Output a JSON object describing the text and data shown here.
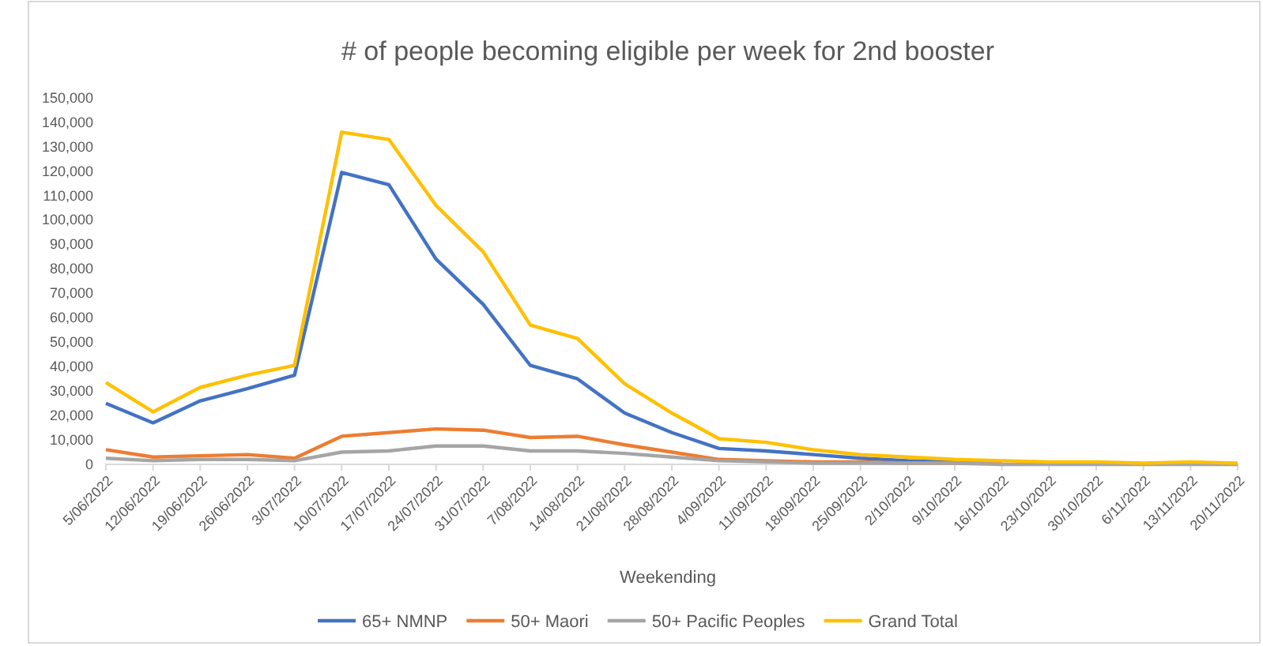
{
  "chart_data": {
    "type": "line",
    "title": "# of people becoming eligible per week for 2nd booster",
    "xlabel": "Weekending",
    "categories": [
      "5/06/2022",
      "12/06/2022",
      "19/06/2022",
      "26/06/2022",
      "3/07/2022",
      "10/07/2022",
      "17/07/2022",
      "24/07/2022",
      "31/07/2022",
      "7/08/2022",
      "14/08/2022",
      "21/08/2022",
      "28/08/2022",
      "4/09/2022",
      "11/09/2022",
      "18/09/2022",
      "25/09/2022",
      "2/10/2022",
      "9/10/2022",
      "16/10/2022",
      "23/10/2022",
      "30/10/2022",
      "6/11/2022",
      "13/11/2022",
      "20/11/2022"
    ],
    "series": [
      {
        "name": "65+ NMNP",
        "color": "#4472c4",
        "values": [
          25000,
          17000,
          26000,
          31000,
          36500,
          119500,
          114500,
          84000,
          65500,
          40500,
          35000,
          21000,
          13000,
          6500,
          5500,
          4000,
          2500,
          1500,
          1000,
          500,
          null,
          null,
          null,
          null,
          null
        ]
      },
      {
        "name": "50+ Maori",
        "color": "#ed7d31",
        "values": [
          6000,
          3000,
          3500,
          4000,
          2500,
          11500,
          13000,
          14500,
          14000,
          11000,
          11500,
          8000,
          5000,
          2000,
          1500,
          1000,
          1000,
          500,
          500,
          500,
          null,
          null,
          null,
          null,
          null
        ]
      },
      {
        "name": "50+ Pacific Peoples",
        "color": "#a5a5a5",
        "values": [
          2500,
          1500,
          2000,
          2000,
          1500,
          5000,
          5500,
          7500,
          7500,
          5500,
          5500,
          4500,
          3000,
          1500,
          1000,
          500,
          500,
          500,
          500,
          0,
          0,
          0,
          0,
          0,
          0
        ]
      },
      {
        "name": "Grand Total",
        "color": "#ffc000",
        "values": [
          33500,
          21500,
          31500,
          36500,
          40500,
          136000,
          133000,
          106000,
          87000,
          57000,
          51500,
          33000,
          21000,
          10500,
          9000,
          6000,
          4000,
          3000,
          2000,
          1500,
          1000,
          1000,
          500,
          1000,
          500
        ]
      }
    ],
    "ylim": [
      0,
      150000
    ],
    "yticks": [
      {
        "value": 0,
        "label": "0"
      },
      {
        "value": 10000,
        "label": "10,000"
      },
      {
        "value": 20000,
        "label": "20,000"
      },
      {
        "value": 30000,
        "label": "30,000"
      },
      {
        "value": 40000,
        "label": "40,000"
      },
      {
        "value": 50000,
        "label": "50,000"
      },
      {
        "value": 60000,
        "label": "60,000"
      },
      {
        "value": 70000,
        "label": "70,000"
      },
      {
        "value": 80000,
        "label": "80,000"
      },
      {
        "value": 90000,
        "label": "90,000"
      },
      {
        "value": 100000,
        "label": "100,000"
      },
      {
        "value": 110000,
        "label": "110,000"
      },
      {
        "value": 120000,
        "label": "120,000"
      },
      {
        "value": 130000,
        "label": "130,000"
      },
      {
        "value": 140000,
        "label": "140,000"
      },
      {
        "value": 150000,
        "label": "150,000"
      }
    ],
    "grid": false,
    "legend": "bottom",
    "marker": "none",
    "line_style": "solid"
  }
}
